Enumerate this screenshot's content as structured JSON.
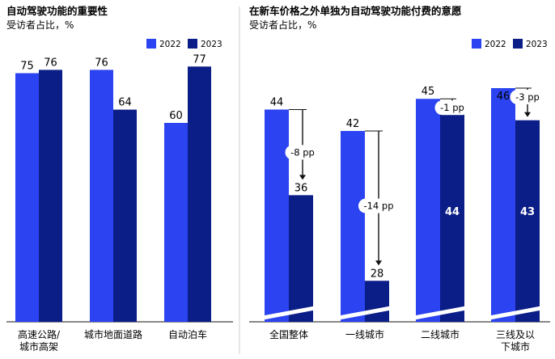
{
  "colors": {
    "c2022": "#2B43F0",
    "c2023": "#0B1D86",
    "divider": "#cfcfcf"
  },
  "chart_data": [
    {
      "type": "bar",
      "title": "自动驾驶功能的重要性",
      "subtitle": "受访者占比，%",
      "legend": [
        "2022",
        "2023"
      ],
      "categories": [
        "高速公路/城市高架",
        "城市地面道路",
        "自动泊车"
      ],
      "category_lines": [
        [
          "高速公路/",
          "城市高架"
        ],
        [
          "城市地面道路"
        ],
        [
          "自动泊车"
        ]
      ],
      "series": [
        {
          "name": "2022",
          "values": [
            75,
            76,
            60
          ]
        },
        {
          "name": "2023",
          "values": [
            76,
            64,
            77
          ]
        }
      ]
    },
    {
      "type": "bar",
      "title": "在新车价格之外单独为自动驾驶功能付费的意愿",
      "subtitle": "受访者占比，%",
      "legend": [
        "2022",
        "2023"
      ],
      "categories": [
        "全国整体",
        "一线城市",
        "二线城市",
        "三线及以下城市"
      ],
      "category_lines": [
        [
          "全国整体"
        ],
        [
          "一线城市"
        ],
        [
          "二线城市"
        ],
        [
          "三线及以",
          "下城市"
        ]
      ],
      "axis_break": true,
      "series": [
        {
          "name": "2022",
          "values": [
            44,
            42,
            45,
            46
          ]
        },
        {
          "name": "2023",
          "values": [
            36,
            28,
            44,
            43
          ]
        }
      ],
      "changes": [
        "-8 pp",
        "-14 pp",
        "-1 pp",
        "-3 pp"
      ]
    }
  ]
}
